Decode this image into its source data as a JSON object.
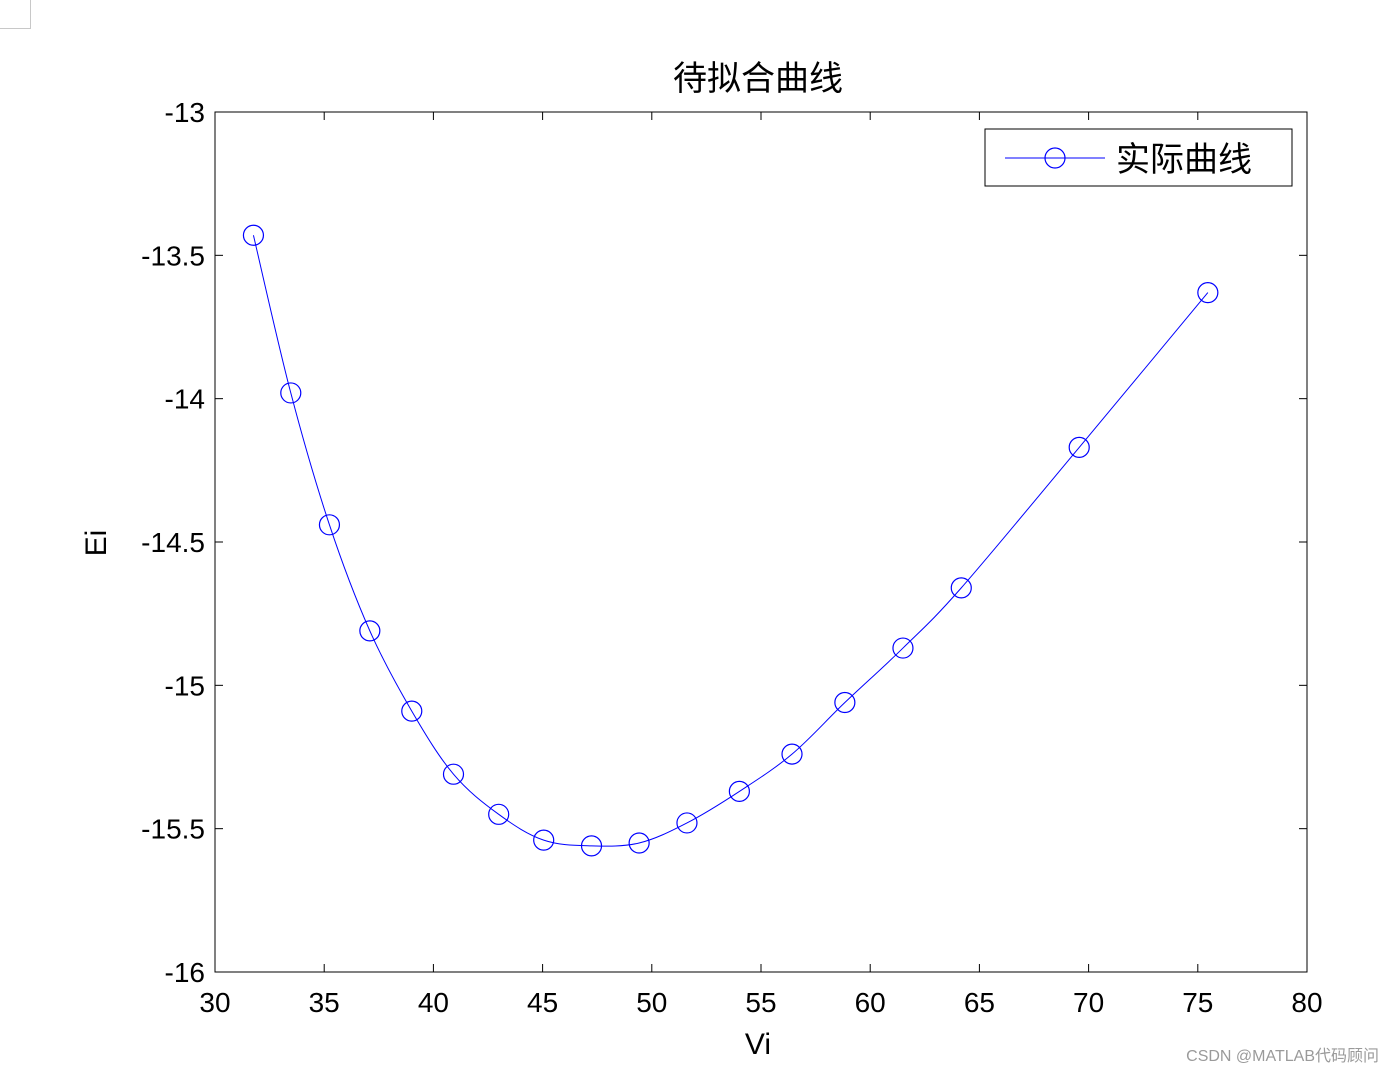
{
  "chart_data": {
    "type": "line",
    "title": "待拟合曲线",
    "xlabel": "Vi",
    "ylabel": "Ei",
    "xlim": [
      30,
      80
    ],
    "ylim": [
      -16,
      -13
    ],
    "xticks": [
      30,
      35,
      40,
      45,
      50,
      55,
      60,
      65,
      70,
      75,
      80
    ],
    "yticks": [
      -13,
      -13.5,
      -14,
      -14.5,
      -15,
      -15.5,
      -16
    ],
    "xtick_labels": [
      "30",
      "35",
      "40",
      "45",
      "50",
      "55",
      "60",
      "65",
      "70",
      "75",
      "80"
    ],
    "ytick_labels": [
      "-13",
      "-13.5",
      "-14",
      "-14.5",
      "-15",
      "-15.5",
      "-16"
    ],
    "grid": false,
    "legend_position": "top-right",
    "series": [
      {
        "name": "实际曲线",
        "color": "#0000ff",
        "marker": "circle",
        "x": [
          31.76,
          33.47,
          35.24,
          37.09,
          39.01,
          40.92,
          42.99,
          45.05,
          47.24,
          49.42,
          51.61,
          54.01,
          56.42,
          58.84,
          61.5,
          64.17,
          69.57,
          75.46
        ],
        "y": [
          -13.43,
          -13.98,
          -14.44,
          -14.81,
          -15.09,
          -15.31,
          -15.45,
          -15.54,
          -15.56,
          -15.55,
          -15.48,
          -15.37,
          -15.24,
          -15.06,
          -14.87,
          -14.66,
          -14.17,
          -13.63
        ]
      }
    ]
  },
  "watermark": "CSDN @MATLAB代码顾问"
}
